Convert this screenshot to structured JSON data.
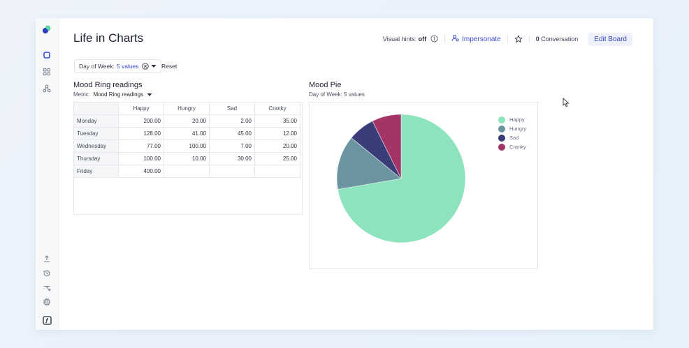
{
  "app": {
    "title": "Life in Charts"
  },
  "toolbar": {
    "visual_hints_label": "Visual hints:",
    "visual_hints_value": "off",
    "impersonate_label": "Impersonate",
    "conversation_count": "0",
    "conversation_label": "Conversation",
    "edit_board_label": "Edit Board"
  },
  "filter": {
    "label": "Day of Week:",
    "value": "5 values",
    "reset_label": "Reset"
  },
  "table_panel": {
    "title": "Mood Ring readings",
    "metric_label": "Metric:",
    "metric_value": "Mood Ring readings",
    "columns": [
      "Happy",
      "Hungry",
      "Sad",
      "Cranky"
    ],
    "rows": [
      {
        "label": "Monday",
        "values": [
          "200.00",
          "20.00",
          "2.00",
          "35.00"
        ]
      },
      {
        "label": "Tuesday",
        "values": [
          "128.00",
          "41.00",
          "45.00",
          "12.00"
        ]
      },
      {
        "label": "Wednesday",
        "values": [
          "77.00",
          "100.00",
          "7.00",
          "20.00"
        ]
      },
      {
        "label": "Thursday",
        "values": [
          "100.00",
          "10.00",
          "30.00",
          "25.00"
        ]
      },
      {
        "label": "Friday",
        "values": [
          "400.00",
          "",
          "",
          ""
        ]
      }
    ]
  },
  "pie_panel": {
    "title": "Mood Pie",
    "subtitle": "Day of Week: 5 values"
  },
  "chart_data": {
    "type": "pie",
    "categories": [
      "Happy",
      "Hungry",
      "Sad",
      "Cranky"
    ],
    "values": [
      905,
      171,
      84,
      92
    ],
    "colors": [
      "#8de3bd",
      "#6a95a0",
      "#3b3d78",
      "#a23466"
    ],
    "legend": "top-right"
  }
}
